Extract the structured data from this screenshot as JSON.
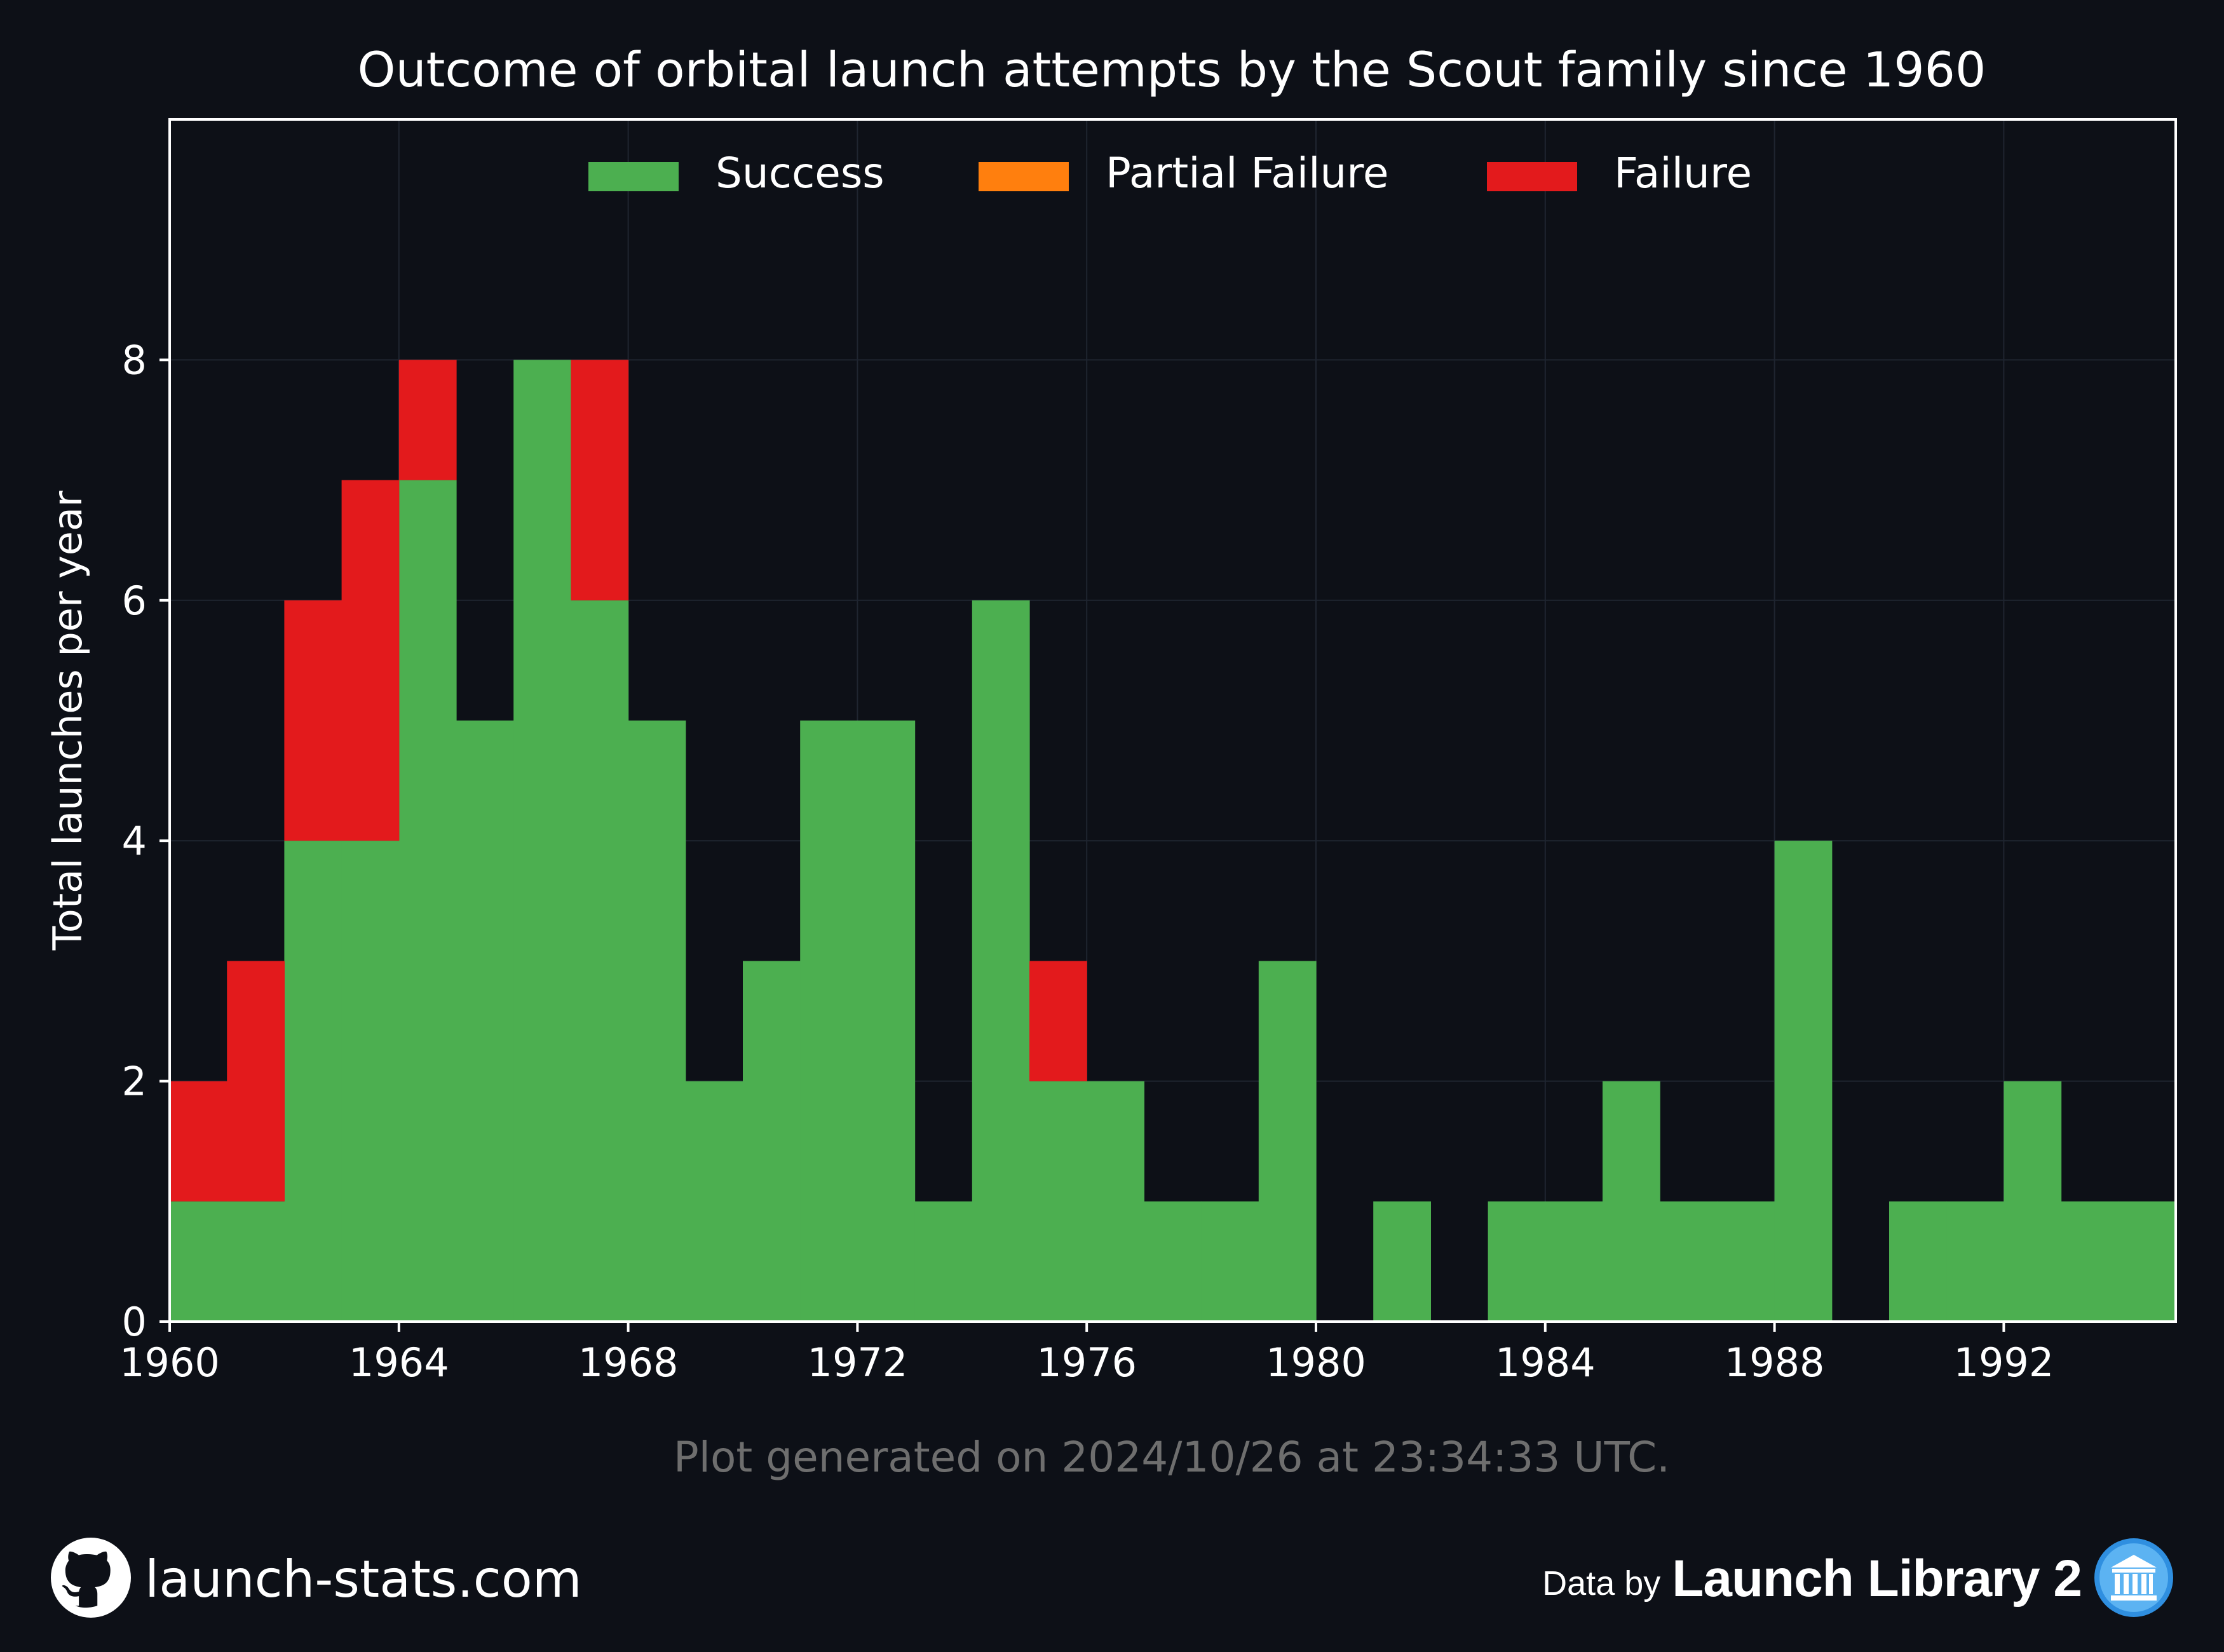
{
  "chart_data": {
    "type": "bar",
    "stacked": true,
    "title": "Outcome of orbital launch attempts by the Scout family since 1960",
    "xlabel": "",
    "ylabel": "Total launches per year",
    "xlim": [
      1960,
      1995
    ],
    "ylim": [
      0,
      10
    ],
    "xticks": [
      "1960",
      "1964",
      "1968",
      "1972",
      "1976",
      "1980",
      "1984",
      "1988",
      "1992"
    ],
    "yticks": [
      "0",
      "2",
      "4",
      "6",
      "8"
    ],
    "grid": true,
    "legend_position": "top-center",
    "years": [
      1960,
      1961,
      1962,
      1963,
      1964,
      1965,
      1966,
      1967,
      1968,
      1969,
      1970,
      1971,
      1972,
      1973,
      1974,
      1975,
      1976,
      1977,
      1978,
      1979,
      1980,
      1981,
      1982,
      1983,
      1984,
      1985,
      1986,
      1987,
      1988,
      1989,
      1990,
      1991,
      1992,
      1993,
      1994
    ],
    "series": [
      {
        "name": "Success",
        "color": "#4caf50",
        "values": [
          1,
          1,
          4,
          4,
          7,
          5,
          8,
          6,
          5,
          2,
          3,
          5,
          5,
          1,
          6,
          2,
          2,
          1,
          1,
          3,
          0,
          1,
          0,
          1,
          1,
          2,
          1,
          1,
          4,
          0,
          1,
          1,
          2,
          1,
          1
        ]
      },
      {
        "name": "Partial Failure",
        "color": "#ff7f0e",
        "values": [
          0,
          0,
          0,
          0,
          0,
          0,
          0,
          0,
          0,
          0,
          0,
          0,
          0,
          0,
          0,
          0,
          0,
          0,
          0,
          0,
          0,
          0,
          0,
          0,
          0,
          0,
          0,
          0,
          0,
          0,
          0,
          0,
          0,
          0,
          0
        ]
      },
      {
        "name": "Failure",
        "color": "#e31a1c",
        "values": [
          1,
          2,
          2,
          3,
          1,
          0,
          0,
          2,
          0,
          0,
          0,
          0,
          0,
          0,
          0,
          1,
          0,
          0,
          0,
          0,
          0,
          0,
          0,
          0,
          0,
          0,
          0,
          0,
          0,
          0,
          0,
          0,
          0,
          0,
          0
        ]
      }
    ]
  },
  "footnote": "Plot generated on 2024/10/26 at 23:34:33 UTC.",
  "footer": {
    "site": "launch-stats.com",
    "data_by": "Data by",
    "source": "Launch Library 2"
  },
  "colors": {
    "background": "#0d1017",
    "grid": "#1f2530",
    "text": "#ffffff",
    "muted": "#6e6e6e"
  },
  "icons": {
    "left": "github-icon",
    "right": "launch-library-icon"
  }
}
